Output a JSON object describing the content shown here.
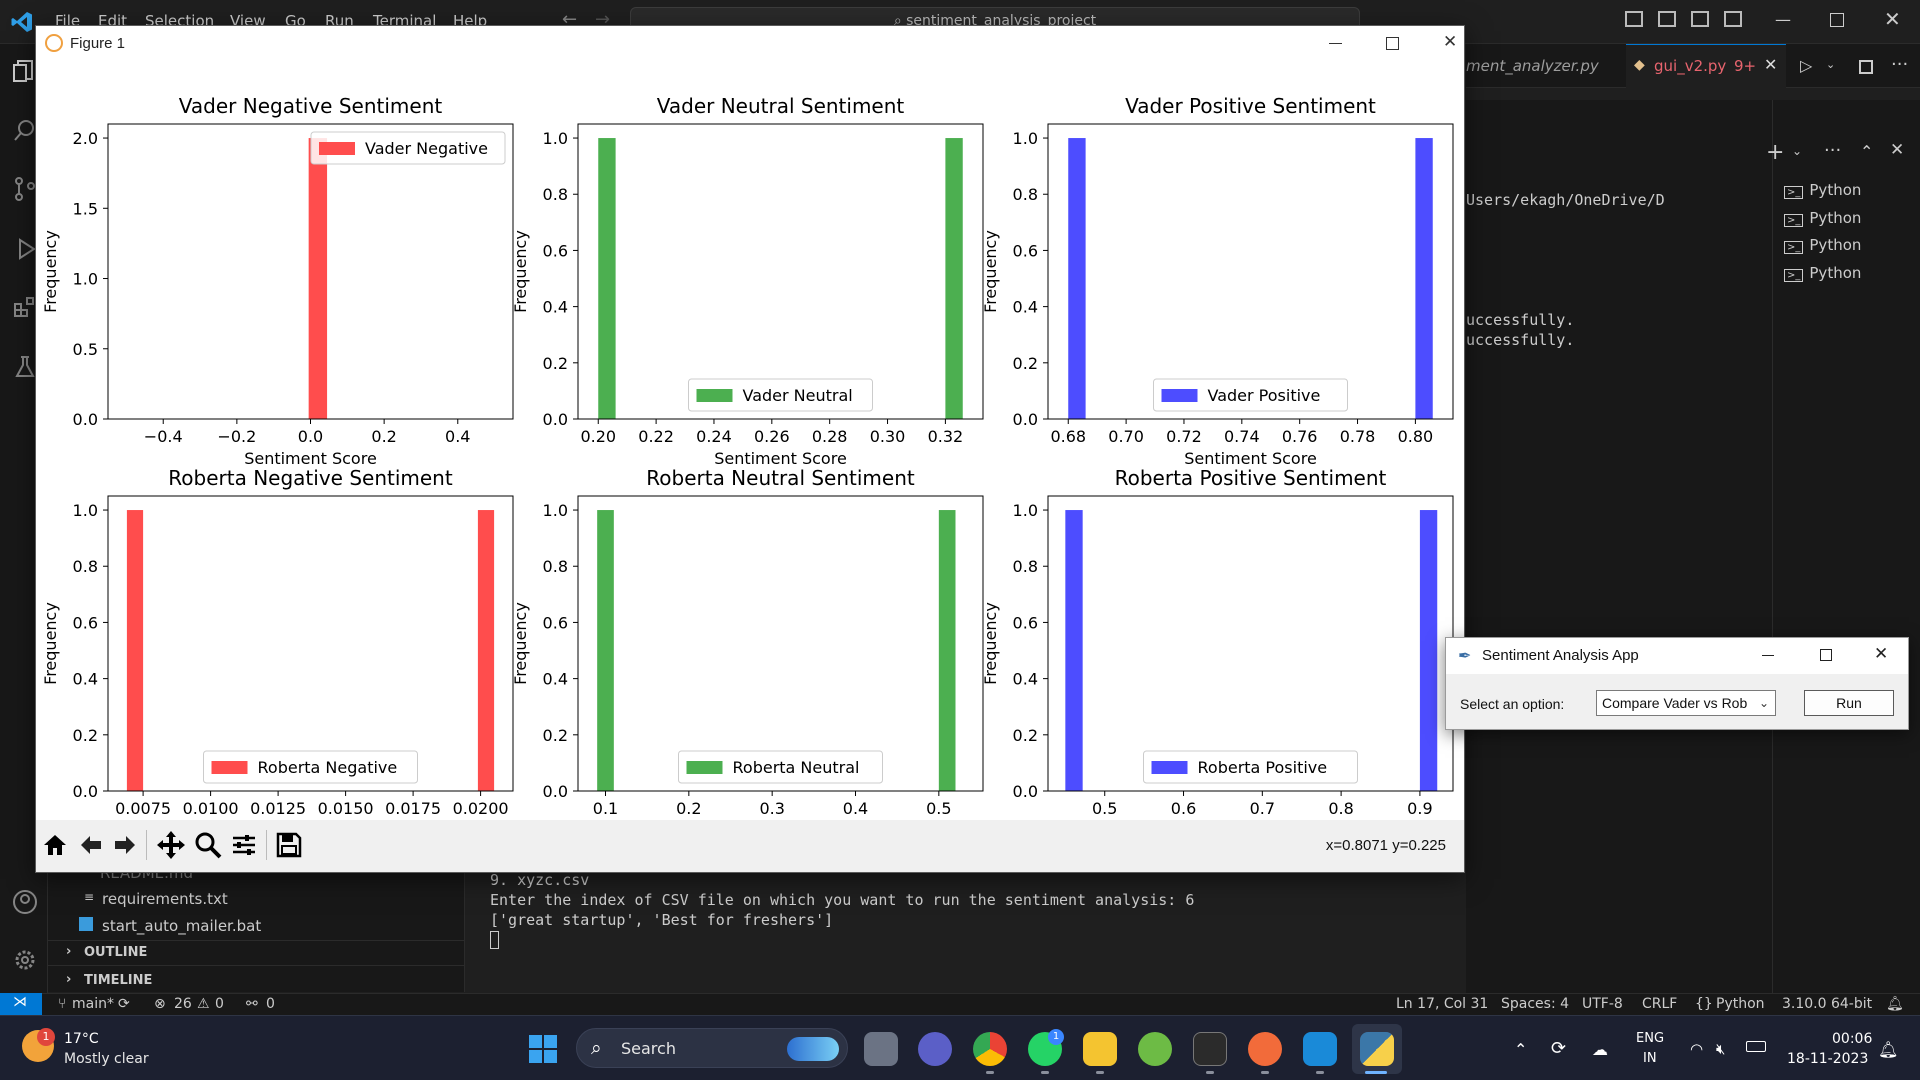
{
  "vscode": {
    "menu": [
      "File",
      "Edit",
      "Selection",
      "View",
      "Go",
      "Run",
      "Terminal",
      "Help"
    ],
    "search": "sentiment_analysis_project",
    "tabs": [
      {
        "label": "ment_analyzer.py"
      },
      {
        "label": "gui_v2.py",
        "badge": "9+"
      }
    ],
    "terminal": {
      "path_line": "Users/ekagh/OneDrive/D",
      "success_lines": [
        "uccessfully.",
        "uccessfully."
      ],
      "items": [
        "Python",
        "Python",
        "Python",
        "Python"
      ],
      "bottom_lines": [
        "9. xyzc.csv",
        "Enter the index of CSV file on which you want to run the sentiment analysis: 6",
        "['great startup', 'Best for freshers']"
      ]
    },
    "explorer": {
      "files": [
        "README.md",
        "requirements.txt",
        "start_auto_mailer.bat"
      ],
      "sections": [
        "OUTLINE",
        "TIMELINE"
      ]
    },
    "status": {
      "branch": "main*",
      "errors": "26",
      "warnings": "0",
      "ports": "0",
      "position": "Ln 17, Col 31",
      "spaces": "Spaces: 4",
      "encoding": "UTF-8",
      "eol": "CRLF",
      "language": "Python",
      "interpreter": "3.10.0 64-bit"
    }
  },
  "taskbar": {
    "weather_temp": "17°C",
    "weather_desc": "Mostly clear",
    "weather_badge": "1",
    "search": "Search",
    "whatsapp_badge": "1",
    "lang_top": "ENG",
    "lang_bottom": "IN",
    "time": "00:06",
    "date": "18-11-2023"
  },
  "figure": {
    "title": "Figure 1",
    "coords": "x=0.8071 y=0.225",
    "colors": {
      "red": "#ff4d4d",
      "green": "#4caf50",
      "blue": "#4d4dff"
    }
  },
  "chart_data": [
    {
      "type": "bar",
      "title": "Vader Negative Sentiment",
      "xlabel": "Sentiment Score",
      "ylabel": "Frequency",
      "legend": "Vader Negative",
      "legend_pos": "upper-right",
      "color": "red",
      "xlim": [
        -0.55,
        0.55
      ],
      "ylim": [
        0,
        2.1
      ],
      "xticks": [
        -0.4,
        -0.2,
        0.0,
        0.2,
        0.4
      ],
      "xtick_labels": [
        "−0.4",
        "−0.2",
        "0.0",
        "0.2",
        "0.4"
      ],
      "yticks": [
        0.0,
        0.5,
        1.0,
        1.5,
        2.0
      ],
      "ytick_labels": [
        "0.0",
        "0.5",
        "1.0",
        "1.5",
        "2.0"
      ],
      "bars": [
        {
          "x0": -0.005,
          "x1": 0.045,
          "y": 2
        }
      ]
    },
    {
      "type": "bar",
      "title": "Vader Neutral Sentiment",
      "xlabel": "Sentiment Score",
      "ylabel": "Frequency",
      "legend": "Vader Neutral",
      "legend_pos": "lower-center",
      "color": "green",
      "xlim": [
        0.193,
        0.333
      ],
      "ylim": [
        0,
        1.05
      ],
      "xticks": [
        0.2,
        0.22,
        0.24,
        0.26,
        0.28,
        0.3,
        0.32
      ],
      "xtick_labels": [
        "0.20",
        "0.22",
        "0.24",
        "0.26",
        "0.28",
        "0.30",
        "0.32"
      ],
      "yticks": [
        0.0,
        0.2,
        0.4,
        0.6,
        0.8,
        1.0
      ],
      "ytick_labels": [
        "0.0",
        "0.2",
        "0.4",
        "0.6",
        "0.8",
        "1.0"
      ],
      "bars": [
        {
          "x0": 0.2,
          "x1": 0.206,
          "y": 1
        },
        {
          "x0": 0.32,
          "x1": 0.326,
          "y": 1
        }
      ]
    },
    {
      "type": "bar",
      "title": "Vader Positive Sentiment",
      "xlabel": "Sentiment Score",
      "ylabel": "Frequency",
      "legend": "Vader Positive",
      "legend_pos": "lower-center",
      "color": "blue",
      "xlim": [
        0.673,
        0.813
      ],
      "ylim": [
        0,
        1.05
      ],
      "xticks": [
        0.68,
        0.7,
        0.72,
        0.74,
        0.76,
        0.78,
        0.8
      ],
      "xtick_labels": [
        "0.68",
        "0.70",
        "0.72",
        "0.74",
        "0.76",
        "0.78",
        "0.80"
      ],
      "yticks": [
        0.0,
        0.2,
        0.4,
        0.6,
        0.8,
        1.0
      ],
      "ytick_labels": [
        "0.0",
        "0.2",
        "0.4",
        "0.6",
        "0.8",
        "1.0"
      ],
      "bars": [
        {
          "x0": 0.68,
          "x1": 0.686,
          "y": 1
        },
        {
          "x0": 0.8,
          "x1": 0.806,
          "y": 1
        }
      ]
    },
    {
      "type": "bar",
      "title": "Roberta Negative Sentiment",
      "xlabel": "Sentiment Score",
      "ylabel": "Frequency",
      "legend": "Roberta Negative",
      "legend_pos": "lower-center",
      "color": "red",
      "xlim": [
        0.0062,
        0.0212
      ],
      "ylim": [
        0,
        1.05
      ],
      "xticks": [
        0.0075,
        0.01,
        0.0125,
        0.015,
        0.0175,
        0.02
      ],
      "xtick_labels": [
        "0.0075",
        "0.0100",
        "0.0125",
        "0.0150",
        "0.0175",
        "0.0200"
      ],
      "yticks": [
        0.0,
        0.2,
        0.4,
        0.6,
        0.8,
        1.0
      ],
      "ytick_labels": [
        "0.0",
        "0.2",
        "0.4",
        "0.6",
        "0.8",
        "1.0"
      ],
      "bars": [
        {
          "x0": 0.0069,
          "x1": 0.0075,
          "y": 1
        },
        {
          "x0": 0.0199,
          "x1": 0.0205,
          "y": 1
        }
      ]
    },
    {
      "type": "bar",
      "title": "Roberta Neutral Sentiment",
      "xlabel": "Sentiment Score",
      "ylabel": "Frequency",
      "legend": "Roberta Neutral",
      "legend_pos": "lower-center",
      "color": "green",
      "xlim": [
        0.067,
        0.553
      ],
      "ylim": [
        0,
        1.05
      ],
      "xticks": [
        0.1,
        0.2,
        0.3,
        0.4,
        0.5
      ],
      "xtick_labels": [
        "0.1",
        "0.2",
        "0.3",
        "0.4",
        "0.5"
      ],
      "yticks": [
        0.0,
        0.2,
        0.4,
        0.6,
        0.8,
        1.0
      ],
      "ytick_labels": [
        "0.0",
        "0.2",
        "0.4",
        "0.6",
        "0.8",
        "1.0"
      ],
      "bars": [
        {
          "x0": 0.09,
          "x1": 0.11,
          "y": 1
        },
        {
          "x0": 0.5,
          "x1": 0.52,
          "y": 1
        }
      ]
    },
    {
      "type": "bar",
      "title": "Roberta Positive Sentiment",
      "xlabel": "Sentiment Score",
      "ylabel": "Frequency",
      "legend": "Roberta Positive",
      "legend_pos": "lower-center",
      "color": "blue",
      "xlim": [
        0.428,
        0.942
      ],
      "ylim": [
        0,
        1.05
      ],
      "xticks": [
        0.5,
        0.6,
        0.7,
        0.8,
        0.9
      ],
      "xtick_labels": [
        "0.5",
        "0.6",
        "0.7",
        "0.8",
        "0.9"
      ],
      "yticks": [
        0.0,
        0.2,
        0.4,
        0.6,
        0.8,
        1.0
      ],
      "ytick_labels": [
        "0.0",
        "0.2",
        "0.4",
        "0.6",
        "0.8",
        "1.0"
      ],
      "bars": [
        {
          "x0": 0.45,
          "x1": 0.472,
          "y": 1
        },
        {
          "x0": 0.9,
          "x1": 0.922,
          "y": 1
        }
      ]
    }
  ],
  "app": {
    "title": "Sentiment Analysis App",
    "label": "Select an option:",
    "selected": "Compare Vader vs Rob",
    "run": "Run"
  }
}
